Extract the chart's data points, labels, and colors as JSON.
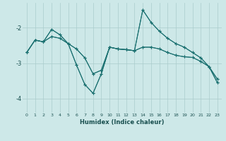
{
  "xlabel": "Humidex (Indice chaleur)",
  "xlim": [
    -0.5,
    23.5
  ],
  "ylim": [
    -4.4,
    -1.3
  ],
  "yticks": [
    -4,
    -3,
    -2
  ],
  "xticks": [
    0,
    1,
    2,
    3,
    4,
    5,
    6,
    7,
    8,
    9,
    10,
    11,
    12,
    13,
    14,
    15,
    16,
    17,
    18,
    19,
    20,
    21,
    22,
    23
  ],
  "bg_color": "#cde8e8",
  "grid_color": "#aacccc",
  "line_color": "#1a7070",
  "lines": [
    {
      "x": [
        0,
        1,
        2,
        3,
        4,
        5,
        6,
        7,
        8,
        9,
        10,
        11,
        12,
        13,
        14,
        15,
        16,
        17,
        18,
        19,
        20,
        21,
        22,
        23
      ],
      "y": [
        -2.7,
        -2.35,
        -2.4,
        -2.25,
        -2.3,
        -2.45,
        -2.6,
        -2.85,
        -3.3,
        -3.2,
        -2.55,
        -2.6,
        -2.62,
        -2.65,
        -2.55,
        -2.55,
        -2.6,
        -2.7,
        -2.78,
        -2.82,
        -2.84,
        -2.95,
        -3.1,
        -3.45
      ]
    },
    {
      "x": [
        0,
        1,
        2,
        3,
        4,
        5,
        6,
        7,
        8,
        9,
        10,
        11,
        12,
        13,
        14,
        15,
        16,
        17,
        18,
        19,
        20,
        21,
        22,
        23
      ],
      "y": [
        -2.7,
        -2.35,
        -2.4,
        -2.05,
        -2.2,
        -2.45,
        -3.05,
        -3.6,
        -3.85,
        -3.3,
        -2.55,
        -2.6,
        -2.62,
        -2.65,
        -2.55,
        -2.55,
        -2.6,
        -2.7,
        -2.78,
        -2.82,
        -2.84,
        -2.95,
        -3.1,
        -3.45
      ]
    },
    {
      "x": [
        0,
        1,
        2,
        3,
        4,
        5,
        6,
        7,
        8,
        9,
        10,
        11,
        12,
        13,
        14,
        15,
        16,
        17,
        18,
        19,
        20,
        21,
        22,
        23
      ],
      "y": [
        -2.7,
        -2.35,
        -2.4,
        -2.05,
        -2.2,
        -2.45,
        -3.05,
        -3.6,
        -3.85,
        -3.3,
        -2.55,
        -2.6,
        -2.62,
        -2.65,
        -1.5,
        -1.85,
        -2.1,
        -2.3,
        -2.45,
        -2.55,
        -2.7,
        -2.85,
        -3.1,
        -3.55
      ]
    },
    {
      "x": [
        0,
        1,
        2,
        3,
        4,
        5,
        6,
        7,
        8,
        9,
        10,
        11,
        12,
        13,
        14,
        15,
        16,
        17,
        18,
        19,
        20,
        21,
        22,
        23
      ],
      "y": [
        -2.7,
        -2.35,
        -2.4,
        -2.25,
        -2.3,
        -2.45,
        -2.6,
        -2.85,
        -3.3,
        -3.2,
        -2.55,
        -2.6,
        -2.62,
        -2.65,
        -1.5,
        -1.85,
        -2.1,
        -2.3,
        -2.45,
        -2.55,
        -2.7,
        -2.85,
        -3.1,
        -3.55
      ]
    }
  ]
}
